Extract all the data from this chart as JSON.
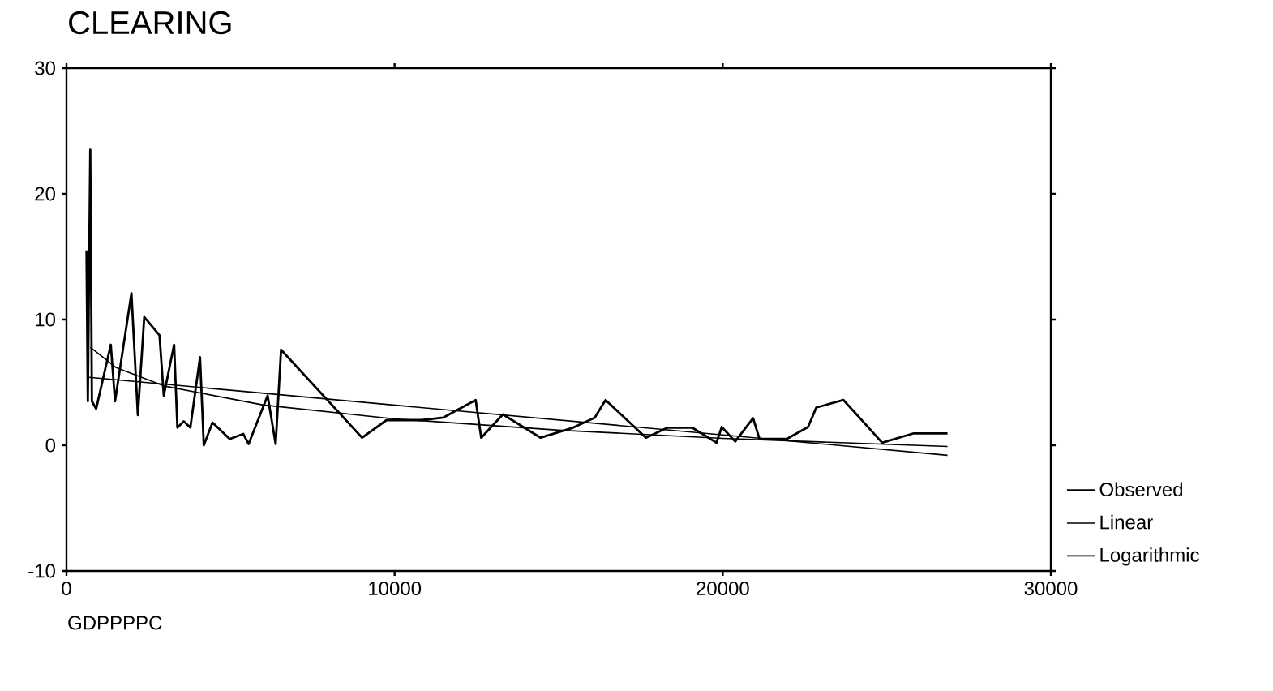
{
  "chart_data": {
    "type": "line",
    "title": "CLEARING",
    "xlabel": "GDPPPPC",
    "xlim": [
      0,
      30000
    ],
    "ylim": [
      -10,
      30
    ],
    "xticks": [
      0,
      10000,
      20000,
      30000
    ],
    "yticks": [
      -10,
      0,
      10,
      20,
      30
    ],
    "legend": "right",
    "grid": false,
    "series": [
      {
        "name": "Observed",
        "color": "#000000",
        "x": [
          610,
          650,
          725,
          775,
          905,
          1350,
          1480,
          1980,
          2175,
          2370,
          2835,
          2965,
          3280,
          3380,
          3575,
          3775,
          4070,
          4185,
          4450,
          4975,
          5390,
          5550,
          6130,
          6375,
          6540,
          9010,
          9755,
          10825,
          11480,
          12470,
          12640,
          13300,
          14450,
          15440,
          16100,
          16430,
          17250,
          17660,
          18320,
          19070,
          19810,
          19970,
          20380,
          20925,
          21120,
          21950,
          22600,
          22850,
          23680,
          24860,
          25820,
          26850
        ],
        "values": [
          15.5,
          3.5,
          23.5,
          3.5,
          2.9,
          8.0,
          3.5,
          12.1,
          2.4,
          10.2,
          8.75,
          3.95,
          8.0,
          1.4,
          1.9,
          1.4,
          7.0,
          0,
          1.8,
          0.5,
          0.9,
          0.1,
          3.95,
          0.1,
          7.6,
          0.6,
          2.0,
          2.0,
          2.2,
          3.6,
          0.6,
          2.45,
          0.6,
          1.4,
          2.2,
          3.6,
          1.6,
          0.6,
          1.4,
          1.4,
          0.2,
          1.45,
          0.3,
          2.15,
          0.5,
          0.5,
          1.45,
          3.0,
          3.6,
          0.2,
          0.95,
          0.95
        ]
      },
      {
        "name": "Linear",
        "color": "#000000",
        "x": [
          690,
          26850
        ],
        "values": [
          5.4,
          -0.8
        ]
      },
      {
        "name": "Logarithmic",
        "color": "#000000",
        "x": [
          725,
          1500,
          3000,
          6000,
          10000,
          15000,
          20000,
          26850
        ],
        "values": [
          7.8,
          6.2,
          4.7,
          3.2,
          2.1,
          1.2,
          0.55,
          -0.1
        ]
      }
    ]
  }
}
